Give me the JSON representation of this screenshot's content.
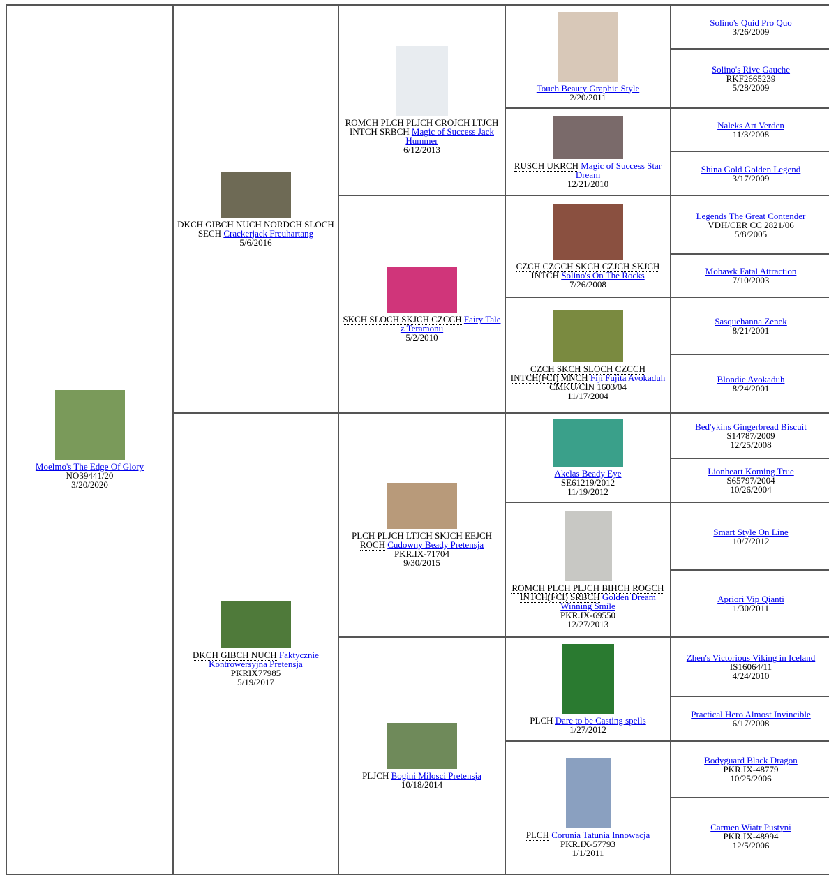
{
  "generations": [
    [
      {
        "name": "Moelmo's The Edge Of Glory",
        "reg": "NO39441/20",
        "date": "3/20/2020"
      }
    ],
    [
      {
        "titles": "DKCH GIBCH NUCH NORDCH SLOCH SECH",
        "name": "Crackerjack Freuhartang",
        "date": "5/6/2016"
      },
      {
        "titles": "DKCH GIBCH NUCH",
        "name": "Faktycznie Kontrowersyjna Pretensja",
        "reg": "PKRIX77985",
        "date": "5/19/2017"
      }
    ],
    [
      {
        "titles": "ROMCH PLCH PLJCH CROJCH LTJCH INTCH SRBCH",
        "name": "Magic of Success Jack Hummer",
        "date": "6/12/2013"
      },
      {
        "titles": "SKCH SLOCH SKJCH CZCCH",
        "name": "Fairy Tale z Teramonu",
        "date": "5/2/2010"
      },
      {
        "titles": "PLCH PLJCH LTJCH SKJCH EEJCH ROCH",
        "name": "Cudowny Beady Pretensja",
        "reg": "PKR.IX-71704",
        "date": "9/30/2015"
      },
      {
        "titles": "PLJCH",
        "name": "Bogini Milosci Pretensja",
        "date": "10/18/2014"
      }
    ],
    [
      {
        "name": "Touch Beauty Graphic Style",
        "date": "2/20/2011"
      },
      {
        "titles": "RUSCH UKRCH",
        "name": "Magic of Success Star Dream",
        "date": "12/21/2010"
      },
      {
        "titles": "CZCH CZGCH SKCH CZJCH SKJCH INTCH",
        "name": "Solino's On The Rocks",
        "date": "7/26/2008"
      },
      {
        "titles": "CZCH SKCH SLOCH CZCCH INTCH(FCI) MNCH",
        "name": "Fiji Fujita Avokaduh",
        "reg": "CMKU/CIN 1603/04",
        "date": "11/17/2004"
      },
      {
        "name": "Akelas Beady Eye",
        "reg": "SE61219/2012",
        "date": "11/19/2012"
      },
      {
        "titles": "ROMCH PLCH PLJCH BIHCH ROGCH INTCH(FCI) SRBCH",
        "name": "Golden Dream Winning Smile",
        "reg": "PKR.IX-69550",
        "date": "12/27/2013"
      },
      {
        "titles": "PLCH",
        "name": "Dare to be Casting spells",
        "date": "1/27/2012"
      },
      {
        "titles": "PLCH",
        "name": "Corunia Tatunia Innowacja",
        "reg": "PKR.IX-57793",
        "date": "1/1/2011"
      }
    ],
    [
      {
        "name": "Solino's Quid Pro Quo",
        "date": "3/26/2009"
      },
      {
        "name": "Solino's Rive Gauche",
        "reg": "RKF2665239",
        "date": "5/28/2009"
      },
      {
        "name": "Naleks Art Verden",
        "date": "11/3/2008"
      },
      {
        "name": "Shina Gold Golden Legend",
        "date": "3/17/2009"
      },
      {
        "name": "Legends The Great Contender",
        "reg": "VDH/CER CC 2821/06",
        "date": "5/8/2005"
      },
      {
        "name": "Mohawk Fatal Attraction",
        "date": "7/10/2003"
      },
      {
        "name": "Sasquehanna Zenek",
        "date": "8/21/2001"
      },
      {
        "name": "Blondie Avokaduh",
        "date": "8/24/2001"
      },
      {
        "name": "Bed'ykins Gingerbread Biscuit",
        "reg": "S14787/2009",
        "date": "12/25/2008"
      },
      {
        "name": "Lionheart Koming True",
        "reg": "S65797/2004",
        "date": "10/26/2004"
      },
      {
        "name": "Smart Style On Line",
        "date": "10/7/2012"
      },
      {
        "name": "Apriori Vip Qianti",
        "date": "1/30/2011"
      },
      {
        "name": "Zhen's Victorious Viking in Iceland",
        "reg": "IS16064/11",
        "date": "4/24/2010"
      },
      {
        "name": "Practical Hero Almost Invincible",
        "date": "6/17/2008"
      },
      {
        "name": "Bodyguard Black Dragon",
        "reg": "PKR.IX-48779",
        "date": "10/25/2006"
      },
      {
        "name": "Carmen Wiatr Pustyni",
        "reg": "PKR.IX-48994",
        "date": "12/5/2006"
      }
    ]
  ]
}
